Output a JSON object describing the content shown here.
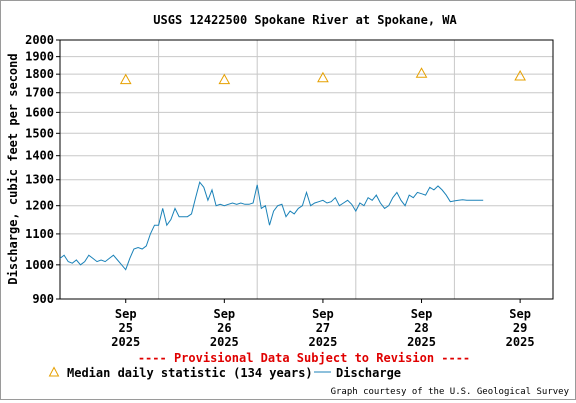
{
  "chart_data": {
    "type": "line",
    "title": "USGS 12422500 Spokane River at Spokane, WA",
    "ylabel": "Discharge, cubic feet per second",
    "xlabel": "",
    "yscale": "log",
    "ylim": [
      900,
      2000
    ],
    "xlim": [
      "2025-09-24 20:00",
      "2025-09-29 20:00"
    ],
    "y_ticks": [
      900,
      1000,
      1100,
      1200,
      1300,
      1400,
      1500,
      1600,
      1700,
      1800,
      1900,
      2000
    ],
    "y_tick_labels": [
      "900",
      "1000",
      "1100",
      "1200",
      "1300",
      "1400",
      "1500",
      "1600",
      "1700",
      "1800",
      "1900",
      "2000"
    ],
    "x_ticks": [
      {
        "date": "2025-09-25",
        "lines": [
          "Sep",
          "25",
          "2025"
        ]
      },
      {
        "date": "2025-09-26",
        "lines": [
          "Sep",
          "26",
          "2025"
        ]
      },
      {
        "date": "2025-09-27",
        "lines": [
          "Sep",
          "27",
          "2025"
        ]
      },
      {
        "date": "2025-09-28",
        "lines": [
          "Sep",
          "28",
          "2025"
        ]
      },
      {
        "date": "2025-09-29",
        "lines": [
          "Sep",
          "29",
          "2025"
        ]
      }
    ],
    "grid": true,
    "legend_position": "bottom-left",
    "colors": {
      "discharge": "#1b82b8",
      "median": "#e6a000",
      "grid": "#c8c8c8",
      "axis": "#000000",
      "notice": "#e00000"
    },
    "series": [
      {
        "name": "Discharge",
        "marker": "line",
        "x": [
          "2025-09-24 20:00",
          "2025-09-24 21:00",
          "2025-09-24 22:00",
          "2025-09-24 23:00",
          "2025-09-25 00:00",
          "2025-09-25 01:00",
          "2025-09-25 02:00",
          "2025-09-25 03:00",
          "2025-09-25 04:00",
          "2025-09-25 05:00",
          "2025-09-25 06:00",
          "2025-09-25 07:00",
          "2025-09-25 08:00",
          "2025-09-25 09:00",
          "2025-09-25 10:00",
          "2025-09-25 11:00",
          "2025-09-25 12:00",
          "2025-09-25 13:00",
          "2025-09-25 14:00",
          "2025-09-25 15:00",
          "2025-09-25 16:00",
          "2025-09-25 17:00",
          "2025-09-25 18:00",
          "2025-09-25 19:00",
          "2025-09-25 20:00",
          "2025-09-25 21:00",
          "2025-09-25 22:00",
          "2025-09-25 23:00",
          "2025-09-26 00:00",
          "2025-09-26 01:00",
          "2025-09-26 02:00",
          "2025-09-26 03:00",
          "2025-09-26 04:00",
          "2025-09-26 05:00",
          "2025-09-26 06:00",
          "2025-09-26 07:00",
          "2025-09-26 08:00",
          "2025-09-26 09:00",
          "2025-09-26 10:00",
          "2025-09-26 11:00",
          "2025-09-26 12:00",
          "2025-09-26 13:00",
          "2025-09-26 14:00",
          "2025-09-26 15:00",
          "2025-09-26 16:00",
          "2025-09-26 17:00",
          "2025-09-26 18:00",
          "2025-09-26 19:00",
          "2025-09-26 20:00",
          "2025-09-26 21:00",
          "2025-09-26 22:00",
          "2025-09-26 23:00",
          "2025-09-27 00:00",
          "2025-09-27 01:00",
          "2025-09-27 02:00",
          "2025-09-27 03:00",
          "2025-09-27 04:00",
          "2025-09-27 05:00",
          "2025-09-27 06:00",
          "2025-09-27 07:00",
          "2025-09-27 08:00",
          "2025-09-27 09:00",
          "2025-09-27 10:00",
          "2025-09-27 11:00",
          "2025-09-27 12:00",
          "2025-09-27 13:00",
          "2025-09-27 14:00",
          "2025-09-27 15:00",
          "2025-09-27 16:00",
          "2025-09-27 17:00",
          "2025-09-27 18:00",
          "2025-09-27 19:00",
          "2025-09-27 20:00",
          "2025-09-27 21:00",
          "2025-09-27 22:00",
          "2025-09-27 23:00",
          "2025-09-28 00:00",
          "2025-09-28 01:00",
          "2025-09-28 02:00",
          "2025-09-28 03:00",
          "2025-09-28 04:00",
          "2025-09-28 05:00",
          "2025-09-28 06:00",
          "2025-09-28 07:00",
          "2025-09-28 08:00",
          "2025-09-28 09:00",
          "2025-09-28 10:00",
          "2025-09-28 11:00",
          "2025-09-28 12:00",
          "2025-09-28 13:00",
          "2025-09-28 14:00",
          "2025-09-28 15:00",
          "2025-09-28 16:00",
          "2025-09-28 17:00",
          "2025-09-28 18:00",
          "2025-09-28 19:00",
          "2025-09-28 20:00",
          "2025-09-28 21:00",
          "2025-09-28 22:00",
          "2025-09-28 23:00",
          "2025-09-29 00:00",
          "2025-09-29 01:00",
          "2025-09-29 02:00",
          "2025-09-29 03:00"
        ],
        "y": [
          1020,
          1030,
          1010,
          1005,
          1015,
          1000,
          1010,
          1030,
          1020,
          1010,
          1015,
          1010,
          1020,
          1030,
          1015,
          1000,
          985,
          1020,
          1050,
          1055,
          1050,
          1060,
          1100,
          1130,
          1130,
          1190,
          1130,
          1150,
          1190,
          1160,
          1160,
          1160,
          1170,
          1230,
          1290,
          1270,
          1220,
          1260,
          1200,
          1205,
          1200,
          1205,
          1210,
          1205,
          1210,
          1205,
          1205,
          1210,
          1280,
          1190,
          1200,
          1130,
          1180,
          1200,
          1205,
          1160,
          1180,
          1170,
          1190,
          1200,
          1250,
          1200,
          1210,
          1215,
          1220,
          1210,
          1215,
          1230,
          1200,
          1210,
          1220,
          1205,
          1180,
          1210,
          1200,
          1230,
          1220,
          1240,
          1210,
          1190,
          1200,
          1230,
          1250,
          1220,
          1200,
          1240,
          1230,
          1250,
          1245,
          1240,
          1270,
          1260,
          1275,
          1260,
          1240,
          1215,
          1218,
          1220,
          1222,
          1220,
          1220,
          1220,
          1220,
          1220
        ]
      },
      {
        "name": "Median daily statistic (134 years)",
        "marker": "triangle",
        "x": [
          "2025-09-25 12:00",
          "2025-09-26 12:00",
          "2025-09-27 12:00",
          "2025-09-28 12:00",
          "2025-09-29 12:00"
        ],
        "y": [
          1770,
          1770,
          1780,
          1805,
          1790
        ]
      }
    ],
    "notice": "---- Provisional Data Subject to Revision ----",
    "legend": {
      "median_label": "Median daily statistic (134 years)",
      "discharge_label": "Discharge"
    },
    "credit": "Graph courtesy of the U.S. Geological Survey"
  }
}
